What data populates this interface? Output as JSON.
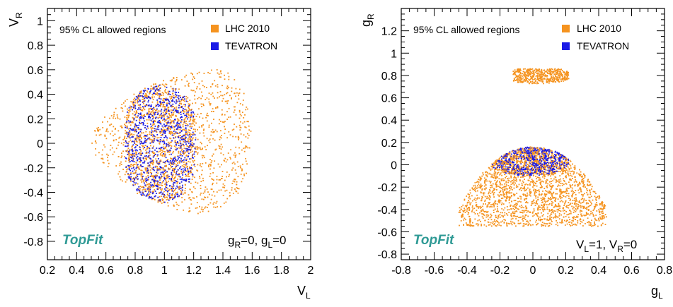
{
  "colors": {
    "lhc": "#f5931f",
    "tevatron": "#1a1ae6",
    "brand": "#2f9a95",
    "frame": "#000000"
  },
  "chart_data": [
    {
      "type": "scatter",
      "xlabel": "V",
      "xlabel_sub": "L",
      "ylabel": "V",
      "ylabel_sub": "R",
      "xlim": [
        0.2,
        2.0
      ],
      "ylim": [
        -0.95,
        1.1
      ],
      "xticks": [
        0.2,
        0.4,
        0.6,
        0.8,
        1,
        1.2,
        1.4,
        1.6,
        1.8,
        2
      ],
      "xticklabels": [
        "0.2",
        "0.4",
        "0.6",
        "0.8",
        "1",
        "1.2",
        "1.4",
        "1.6",
        "1.8",
        "2"
      ],
      "yticks": [
        -0.8,
        -0.6,
        -0.4,
        -0.2,
        0,
        0.2,
        0.4,
        0.6,
        0.8,
        1
      ],
      "yticklabels": [
        "-0.8",
        "-0.6",
        "-0.4",
        "-0.2",
        "0",
        "0.2",
        "0.4",
        "0.6",
        "0.8",
        "1"
      ],
      "region_label": "95% CL allowed regions",
      "legend": [
        {
          "name": "LHC 2010",
          "color": "#f5931f"
        },
        {
          "name": "TEVATRON",
          "color": "#1a1ae6"
        }
      ],
      "legend_position": "top-right",
      "brand": "TopFit",
      "constraint": [
        {
          "t": "g",
          "sub": "R"
        },
        {
          "t": "=0, g"
        },
        {
          "t": "",
          "sub": "L"
        },
        {
          "t": "=0"
        }
      ],
      "series": [
        {
          "name": "LHC 2010",
          "shape": "ellipse_union",
          "outline": [
            [
              0.5,
              0.0
            ],
            [
              0.52,
              0.1
            ],
            [
              0.58,
              0.2
            ],
            [
              0.7,
              0.35
            ],
            [
              0.85,
              0.45
            ],
            [
              1.0,
              0.52
            ],
            [
              1.15,
              0.58
            ],
            [
              1.3,
              0.62
            ],
            [
              1.45,
              0.58
            ],
            [
              1.55,
              0.4
            ],
            [
              1.6,
              0.1
            ],
            [
              1.58,
              -0.2
            ],
            [
              1.5,
              -0.42
            ],
            [
              1.35,
              -0.55
            ],
            [
              1.2,
              -0.58
            ],
            [
              1.0,
              -0.52
            ],
            [
              0.85,
              -0.42
            ],
            [
              0.7,
              -0.3
            ],
            [
              0.58,
              -0.18
            ],
            [
              0.52,
              -0.08
            ]
          ]
        },
        {
          "name": "TEVATRON",
          "outline": [
            [
              0.72,
              0.0
            ],
            [
              0.74,
              0.25
            ],
            [
              0.82,
              0.42
            ],
            [
              1.0,
              0.49
            ],
            [
              1.12,
              0.42
            ],
            [
              1.2,
              0.25
            ],
            [
              1.22,
              0.0
            ],
            [
              1.2,
              -0.25
            ],
            [
              1.12,
              -0.42
            ],
            [
              1.0,
              -0.49
            ],
            [
              0.82,
              -0.42
            ],
            [
              0.74,
              -0.25
            ]
          ]
        }
      ]
    },
    {
      "type": "scatter",
      "xlabel": "g",
      "xlabel_sub": "L",
      "ylabel": "g",
      "ylabel_sub": "R",
      "xlim": [
        -0.8,
        0.8
      ],
      "ylim": [
        -0.85,
        1.4
      ],
      "xticks": [
        -0.8,
        -0.6,
        -0.4,
        -0.2,
        0,
        0.2,
        0.4,
        0.6,
        0.8
      ],
      "xticklabels": [
        "-0.8",
        "-0.6",
        "-0.4",
        "-0.2",
        "0",
        "0.2",
        "0.4",
        "0.6",
        "0.8"
      ],
      "yticks": [
        -0.8,
        -0.6,
        -0.4,
        -0.2,
        0,
        0.2,
        0.4,
        0.6,
        0.8,
        1,
        1.2
      ],
      "yticklabels": [
        "-0.8",
        "-0.6",
        "-0.4",
        "-0.2",
        "0",
        "0.2",
        "0.4",
        "0.6",
        "0.8",
        "1",
        "1.2"
      ],
      "region_label": "95% CL allowed regions",
      "legend": [
        {
          "name": "LHC 2010",
          "color": "#f5931f"
        },
        {
          "name": "TEVATRON",
          "color": "#1a1ae6"
        }
      ],
      "legend_position": "top-right",
      "brand": "TopFit",
      "constraint": [
        {
          "t": "V",
          "sub": "L"
        },
        {
          "t": "=1, V"
        },
        {
          "t": "",
          "sub": "R"
        },
        {
          "t": "=0"
        }
      ],
      "series": [
        {
          "name": "LHC 2010",
          "regions": [
            {
              "x": [
                -0.1,
                0.2
              ],
              "y_center": 0.79,
              "half_width": 0.15,
              "half_height": 0.06,
              "band": true
            },
            {
              "x": [
                -0.45,
                0.45
              ],
              "y_top": 0.16,
              "y_bottom": -0.55,
              "dome": true
            }
          ]
        },
        {
          "name": "TEVATRON",
          "regions": [
            {
              "x": [
                -0.25,
                0.22
              ],
              "y_top": 0.16,
              "y_bottom": -0.1,
              "cap": true
            }
          ]
        }
      ]
    }
  ]
}
